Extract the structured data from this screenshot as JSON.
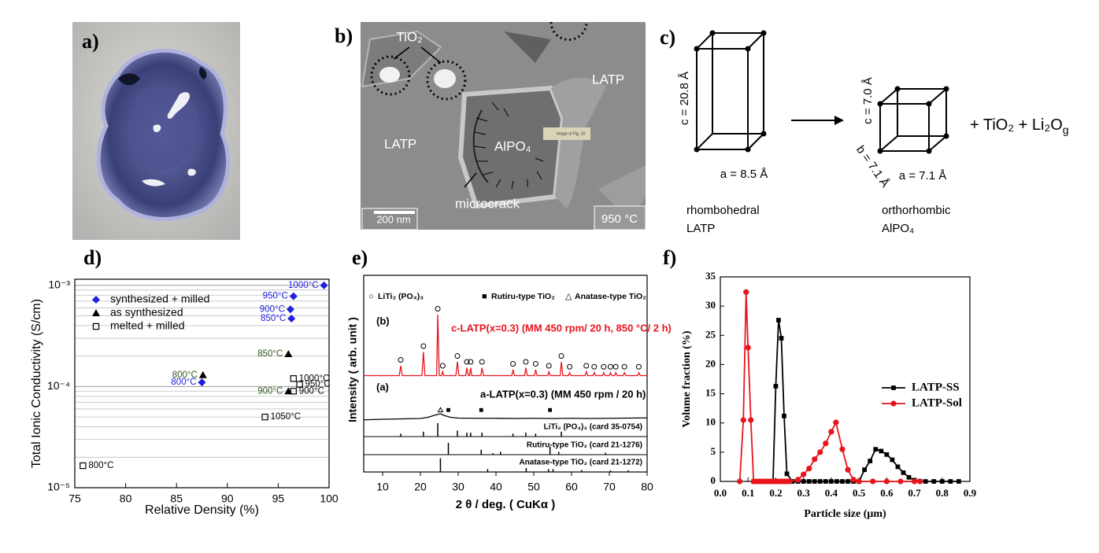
{
  "panel_labels": [
    "a)",
    "b)",
    "c)",
    "d)",
    "e)",
    "f)"
  ],
  "micrograph": {
    "tio2": "TiO₂",
    "latp_right": "LATP",
    "latp_left": "LATP",
    "alpo4": "AlPO₄",
    "caption": "Image of Fig. 10",
    "microcrack": "microcrack",
    "scale": "200 nm",
    "temperature": "950 °C"
  },
  "crystal": {
    "left": {
      "c": "c = 20.8 Å",
      "a": "a = 8.5 Å",
      "system": "rhombohedral",
      "phase": "LATP"
    },
    "right": {
      "c": "c = 7.0 Å",
      "b": "b = 7.1 Å",
      "a": "a = 7.1 Å",
      "system": "orthorhombic",
      "phase": "AlPO₄"
    },
    "products": "+ TiO₂ + Li₂O",
    "products_subscript": "g"
  },
  "chart_data": [
    {
      "type": "scatter",
      "x_label": "Relative Density (%)",
      "y_label": "Total Ionic Conductivity (S/cm)",
      "log_y": true,
      "xlim": [
        75,
        100
      ],
      "xticks": [
        75,
        80,
        85,
        90,
        95,
        100
      ],
      "ylim": [
        1e-05,
        0.00115
      ],
      "yticks": [
        {
          "value": 1e-05,
          "label": "10⁻⁵"
        },
        {
          "value": 0.0001,
          "label": "10⁻⁴"
        },
        {
          "value": 0.001,
          "label": "10⁻³"
        }
      ],
      "grid_lines": [
        2e-05,
        3e-05,
        4e-05,
        5e-05,
        6e-05,
        7e-05,
        8e-05,
        9e-05,
        0.0002,
        0.0003,
        0.0004,
        0.0005,
        0.0006,
        0.0007,
        0.0008,
        0.0009
      ],
      "legend": "upper left",
      "series": [
        {
          "name": "synthesized + milled",
          "marker": "diamond",
          "color": "#1f1fe0",
          "label_color": "#1f1fe0",
          "x": [
            99.5,
            96.5,
            96.2,
            96.3,
            87.5
          ],
          "values": [
            0.001,
            0.00078,
            0.00058,
            0.00047,
            0.00011
          ],
          "point_labels": [
            "1000°C",
            "950°C",
            "900°C",
            "850°C",
            "800°C"
          ]
        },
        {
          "name": "as synthesized",
          "marker": "triangle",
          "color": "#000000",
          "label_color": "#2d5a1e",
          "x": [
            96.0,
            87.6,
            96.0
          ],
          "values": [
            0.00021,
            0.00013,
            9e-05
          ],
          "point_labels": [
            "850°C",
            "800°C",
            "900°C"
          ]
        },
        {
          "name": "melted + milled",
          "marker": "square",
          "color": "#000000",
          "label_color": "#000000",
          "x": [
            96.5,
            97.1,
            96.5,
            93.7,
            75.8
          ],
          "values": [
            0.00012,
            0.000105,
            9e-05,
            5e-05,
            1.65e-05
          ],
          "point_labels": [
            "1000°C",
            "950°C",
            "900°C",
            "1050°C",
            "800°C"
          ]
        }
      ]
    },
    {
      "type": "xrd",
      "x_label": "2 θ / deg. ( CuKα )",
      "y_label": "Intensity ( arb. unit )",
      "xlim": [
        5,
        80
      ],
      "xticks": [
        10,
        20,
        30,
        40,
        50,
        60,
        70,
        80
      ],
      "ylim": [
        0,
        100
      ],
      "legend_items": [
        {
          "symbol": "○",
          "name": "LiTi₂ (PO₄)₃"
        },
        {
          "symbol": "■",
          "name": "Rutiru-type TiO₂"
        },
        {
          "symbol": "△",
          "name": "Anatase-type TiO₂"
        }
      ],
      "series": [
        {
          "tag": "(b)",
          "name": "c-LATP(x=0.3) (MM 450 rpm/ 20 h, 850 °C/ 2 h)",
          "color": "#e8141c",
          "x": [
            5,
            14.4,
            14.8,
            15.2,
            20.4,
            20.8,
            21.2,
            24.3,
            24.6,
            25.0,
            25.6,
            25.9,
            26.2,
            29.4,
            29.8,
            30.2,
            32.0,
            32.3,
            32.7,
            33.0,
            33.3,
            33.6,
            36.0,
            36.3,
            36.7,
            44.2,
            44.5,
            44.9,
            47.6,
            47.9,
            48.3,
            50.2,
            50.5,
            50.9,
            53.7,
            54.0,
            54.4,
            57.0,
            57.3,
            57.7,
            59.2,
            59.5,
            59.9,
            63.6,
            63.9,
            64.3,
            65.7,
            66.0,
            66.4,
            68.2,
            68.5,
            68.9,
            70.0,
            70.3,
            70.7,
            71.4,
            71.7,
            72.1,
            73.7,
            74.0,
            74.4,
            77.5,
            77.8,
            78.2,
            80
          ],
          "values": [
            49,
            49,
            54,
            49,
            49,
            61,
            49,
            49,
            80,
            49,
            49,
            51,
            49,
            49,
            56,
            49,
            49,
            53,
            49,
            49,
            53,
            49,
            49,
            53,
            49,
            49,
            52,
            49,
            49,
            53,
            49,
            49,
            52,
            49,
            49,
            51,
            49,
            49,
            56,
            49,
            49,
            50.5,
            49,
            49,
            51,
            49,
            49,
            50.5,
            49,
            49,
            50.5,
            49,
            49,
            50.5,
            49,
            49,
            50.5,
            49,
            49,
            50.5,
            49,
            49,
            50.5,
            49,
            49
          ],
          "markers": [
            {
              "symbol": "circle",
              "x": [
                14.8,
                20.8,
                24.6,
                25.9,
                29.8,
                32.3,
                33.3,
                36.3,
                44.5,
                47.9,
                50.5,
                54.0,
                57.3,
                59.5,
                63.9,
                66.0,
                68.5,
                70.3,
                71.7,
                74.0,
                77.8
              ],
              "y": [
                57,
                64,
                83,
                54,
                59,
                56,
                56,
                56,
                55,
                56,
                55,
                54,
                59,
                53.5,
                54,
                53.5,
                53.5,
                53.5,
                53.5,
                53.5,
                53.5
              ]
            }
          ]
        },
        {
          "tag": "(a)",
          "name": "a-LATP(x=0.3) (MM 450 rpm / 20 h)",
          "color": "#000000",
          "x": [
            5,
            10,
            15,
            20,
            22,
            24,
            25.3,
            26.5,
            28,
            30,
            35,
            40,
            45,
            50,
            55,
            60,
            65,
            70,
            75,
            80
          ],
          "values": [
            26.5,
            26.8,
            27,
            27.2,
            27.8,
            29,
            29.6,
            28.6,
            27.8,
            27.4,
            27.3,
            27.3,
            27.2,
            27.3,
            27.2,
            27.3,
            27.2,
            27.3,
            27.4,
            27.5
          ],
          "markers": [
            {
              "symbol": "triangle",
              "x": [
                25.3
              ],
              "y": [
                31.5
              ]
            },
            {
              "symbol": "square",
              "x": [
                27.4,
                36.1,
                54.3
              ],
              "y": [
                31.5,
                31.5,
                31.5
              ]
            }
          ]
        }
      ],
      "references": [
        {
          "name": "LiTi₂ (PO₄)₃ (card 35-0754)",
          "base": 18,
          "x": [
            14.8,
            20.8,
            24.6,
            29.8,
            32.3,
            33.3,
            36.3,
            44.5,
            47.9,
            50.5,
            57.3
          ],
          "values": [
            1.5,
            2.5,
            6.8,
            3,
            2,
            2,
            2,
            1.5,
            2,
            1.5,
            2.5
          ]
        },
        {
          "name": "Rutiru-type TiO₂ (card 21-1276)",
          "base": 8.8,
          "x": [
            27.4,
            36.1,
            39.2,
            41.2,
            54.3,
            56.6,
            69.0
          ],
          "values": [
            6,
            2.5,
            0.8,
            1.5,
            4,
            1.5,
            1
          ]
        },
        {
          "name": "Anatase-type TiO₂ (card 21-1272)",
          "base": 0,
          "x": [
            25.3,
            37.8,
            48.0,
            53.9,
            55.1,
            62.7,
            70.3,
            75.0
          ],
          "values": [
            7,
            1.5,
            2,
            1.5,
            1.5,
            1,
            0.8,
            0.8
          ]
        }
      ]
    },
    {
      "type": "line",
      "x_label": "Particle size (μm)",
      "y_label": "Volume fraction (%)",
      "xlim": [
        0,
        0.9
      ],
      "xticks": [
        {
          "value": 0,
          "label": "0.0"
        },
        0.1,
        0.2,
        0.3,
        0.4,
        0.5,
        0.6,
        0.7,
        0.8,
        0.9
      ],
      "ylim": [
        0,
        35
      ],
      "yticks": [
        0,
        5,
        10,
        15,
        20,
        25,
        30,
        35
      ],
      "legend": "center right",
      "series": [
        {
          "name": "LATP-SS",
          "color": "#000000",
          "marker": "square",
          "x": [
            0.12,
            0.13,
            0.14,
            0.15,
            0.16,
            0.17,
            0.18,
            0.19,
            0.2,
            0.21,
            0.22,
            0.23,
            0.24,
            0.26,
            0.28,
            0.3,
            0.32,
            0.34,
            0.36,
            0.38,
            0.4,
            0.42,
            0.44,
            0.46,
            0.48,
            0.5,
            0.52,
            0.54,
            0.56,
            0.58,
            0.6,
            0.62,
            0.64,
            0.66,
            0.68,
            0.7,
            0.72,
            0.74,
            0.77,
            0.8,
            0.83,
            0.86
          ],
          "values": [
            0,
            0,
            0,
            0,
            0,
            0,
            0,
            0,
            16.3,
            27.6,
            24.5,
            11.2,
            1.3,
            0,
            0,
            0,
            0,
            0,
            0,
            0,
            0,
            0,
            0,
            0,
            0,
            0,
            2,
            3.5,
            5.5,
            5.2,
            4.6,
            3.7,
            2.5,
            1.5,
            0.7,
            0.2,
            0.05,
            0,
            0,
            0,
            0,
            0
          ]
        },
        {
          "name": "LATP-Sol",
          "color": "#e8141c",
          "marker": "circle",
          "x": [
            0.07,
            0.083,
            0.093,
            0.1,
            0.11,
            0.12,
            0.13,
            0.14,
            0.15,
            0.16,
            0.17,
            0.18,
            0.19,
            0.2,
            0.21,
            0.22,
            0.23,
            0.24,
            0.25,
            0.28,
            0.3,
            0.32,
            0.34,
            0.36,
            0.38,
            0.4,
            0.417,
            0.44,
            0.46,
            0.48,
            0.5,
            0.55,
            0.6,
            0.65,
            0.7,
            0.72
          ],
          "values": [
            0,
            10.5,
            32.4,
            22.9,
            10.5,
            0,
            0,
            0,
            0,
            0,
            0,
            0,
            0,
            0,
            0,
            0,
            0,
            0,
            0,
            0.3,
            1.2,
            2.2,
            3.8,
            5,
            6.5,
            8.5,
            10.1,
            5.5,
            2,
            0.3,
            0,
            0,
            0,
            0,
            0,
            0
          ]
        }
      ]
    }
  ]
}
